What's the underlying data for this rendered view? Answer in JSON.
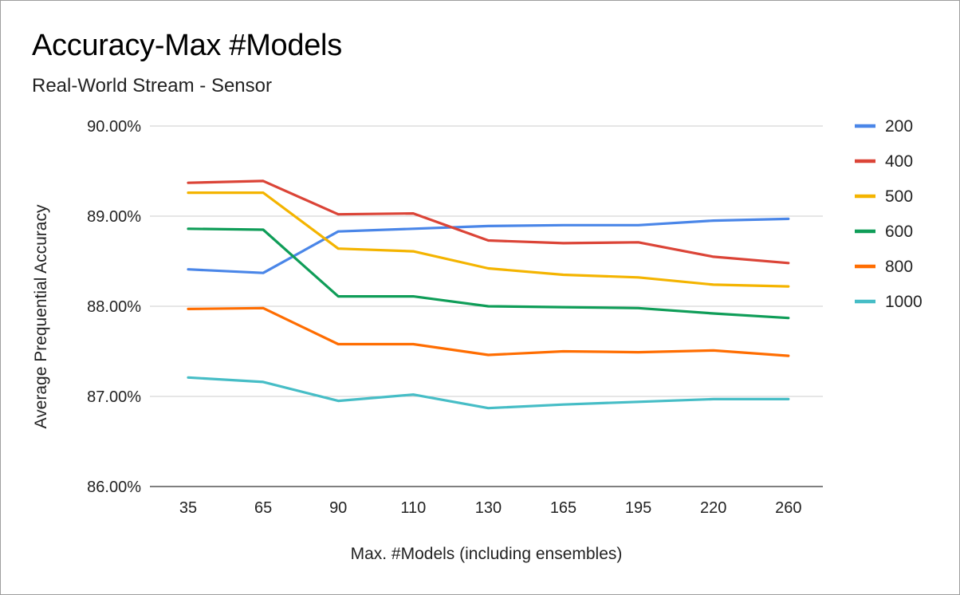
{
  "chart_data": {
    "type": "line",
    "title": "Accuracy-Max #Models",
    "subtitle": "Real-World Stream - Sensor",
    "xlabel": "Max. #Models (including ensembles)",
    "ylabel": "Average Prequential Accuracy",
    "categories": [
      "35",
      "65",
      "90",
      "110",
      "130",
      "165",
      "195",
      "220",
      "260"
    ],
    "ylim": [
      86.0,
      90.0
    ],
    "yticks": [
      86.0,
      87.0,
      88.0,
      89.0,
      90.0
    ],
    "ytick_labels": [
      "86.00%",
      "87.00%",
      "88.00%",
      "89.00%",
      "90.00%"
    ],
    "grid": true,
    "legend_position": "right",
    "series": [
      {
        "name": "200",
        "color": "#4a86e8",
        "values": [
          88.41,
          88.37,
          88.83,
          88.86,
          88.89,
          88.9,
          88.9,
          88.95,
          88.97
        ]
      },
      {
        "name": "400",
        "color": "#db4437",
        "values": [
          89.37,
          89.39,
          89.02,
          89.03,
          88.73,
          88.7,
          88.71,
          88.55,
          88.48
        ]
      },
      {
        "name": "500",
        "color": "#f4b400",
        "values": [
          89.26,
          89.26,
          88.64,
          88.61,
          88.42,
          88.35,
          88.32,
          88.24,
          88.22
        ]
      },
      {
        "name": "600",
        "color": "#0f9d58",
        "values": [
          88.86,
          88.85,
          88.11,
          88.11,
          88.0,
          87.99,
          87.98,
          87.92,
          87.87
        ]
      },
      {
        "name": "800",
        "color": "#ff6d01",
        "values": [
          87.97,
          87.98,
          87.58,
          87.58,
          87.46,
          87.5,
          87.49,
          87.51,
          87.45
        ]
      },
      {
        "name": "1000",
        "color": "#46bdc6",
        "values": [
          87.21,
          87.16,
          86.95,
          87.02,
          86.87,
          86.91,
          86.94,
          86.97,
          86.97
        ]
      }
    ]
  }
}
